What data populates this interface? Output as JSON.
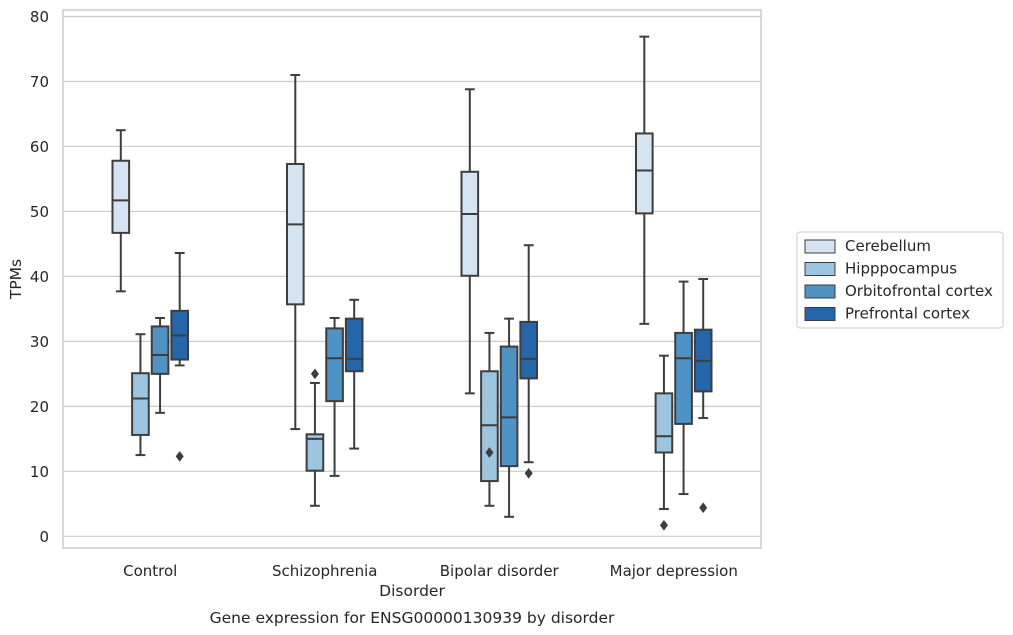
{
  "chart_data": {
    "type": "box",
    "title": "",
    "caption": "Gene expression for ENSG00000130939 by disorder",
    "xlabel": "Disorder",
    "ylabel": "TPMs",
    "ylim": [
      -1.8,
      81
    ],
    "yticks": [
      0,
      10,
      20,
      30,
      40,
      50,
      60,
      70,
      80
    ],
    "grid": "horizontal",
    "legend_position": "right",
    "categories": [
      "Control",
      "Schizophrenia",
      "Bipolar disorder",
      "Major depression"
    ],
    "series": [
      {
        "name": "Cerebellum",
        "color": "#d6e4f2",
        "boxes": [
          {
            "whisker_low": 37.7,
            "q1": 46.7,
            "median": 51.7,
            "q3": 57.8,
            "whisker_high": 62.5,
            "outliers": []
          },
          {
            "whisker_low": 16.5,
            "q1": 35.7,
            "median": 48.0,
            "q3": 57.3,
            "whisker_high": 71.0,
            "outliers": []
          },
          {
            "whisker_low": 22.0,
            "q1": 40.1,
            "median": 49.6,
            "q3": 56.1,
            "whisker_high": 68.8,
            "outliers": []
          },
          {
            "whisker_low": 32.7,
            "q1": 49.7,
            "median": 56.3,
            "q3": 62.0,
            "whisker_high": 76.9,
            "outliers": []
          }
        ]
      },
      {
        "name": "Hipppocampus",
        "color": "#9dc5e0",
        "boxes": [
          {
            "whisker_low": 12.5,
            "q1": 15.6,
            "median": 21.2,
            "q3": 25.1,
            "whisker_high": 31.1,
            "outliers": []
          },
          {
            "whisker_low": 4.7,
            "q1": 10.1,
            "median": 15.0,
            "q3": 15.7,
            "whisker_high": 23.6,
            "outliers": [
              25.0
            ]
          },
          {
            "whisker_low": 4.7,
            "q1": 8.5,
            "median": 17.1,
            "q3": 25.4,
            "whisker_high": 31.3,
            "outliers": [
              12.9
            ]
          },
          {
            "whisker_low": 4.2,
            "q1": 12.9,
            "median": 15.4,
            "q3": 22.0,
            "whisker_high": 27.8,
            "outliers": [
              1.7
            ]
          }
        ]
      },
      {
        "name": "Orbitofrontal cortex",
        "color": "#4f93c4",
        "boxes": [
          {
            "whisker_low": 19.0,
            "q1": 25.0,
            "median": 27.9,
            "q3": 32.3,
            "whisker_high": 33.6,
            "outliers": []
          },
          {
            "whisker_low": 9.3,
            "q1": 20.8,
            "median": 27.4,
            "q3": 32.0,
            "whisker_high": 33.6,
            "outliers": []
          },
          {
            "whisker_low": 3.0,
            "q1": 10.8,
            "median": 18.3,
            "q3": 29.2,
            "whisker_high": 33.5,
            "outliers": []
          },
          {
            "whisker_low": 6.5,
            "q1": 17.3,
            "median": 27.4,
            "q3": 31.3,
            "whisker_high": 39.2,
            "outliers": []
          }
        ]
      },
      {
        "name": "Prefrontal cortex",
        "color": "#2566a8",
        "boxes": [
          {
            "whisker_low": 26.3,
            "q1": 27.2,
            "median": 30.9,
            "q3": 34.7,
            "whisker_high": 43.6,
            "outliers": [
              12.3
            ]
          },
          {
            "whisker_low": 13.5,
            "q1": 25.4,
            "median": 27.3,
            "q3": 33.5,
            "whisker_high": 36.4,
            "outliers": []
          },
          {
            "whisker_low": 11.4,
            "q1": 24.3,
            "median": 27.3,
            "q3": 33.0,
            "whisker_high": 44.8,
            "outliers": [
              9.7
            ]
          },
          {
            "whisker_low": 18.2,
            "q1": 22.3,
            "median": 27.0,
            "q3": 31.8,
            "whisker_high": 39.6,
            "outliers": [
              4.4
            ]
          }
        ]
      }
    ]
  }
}
